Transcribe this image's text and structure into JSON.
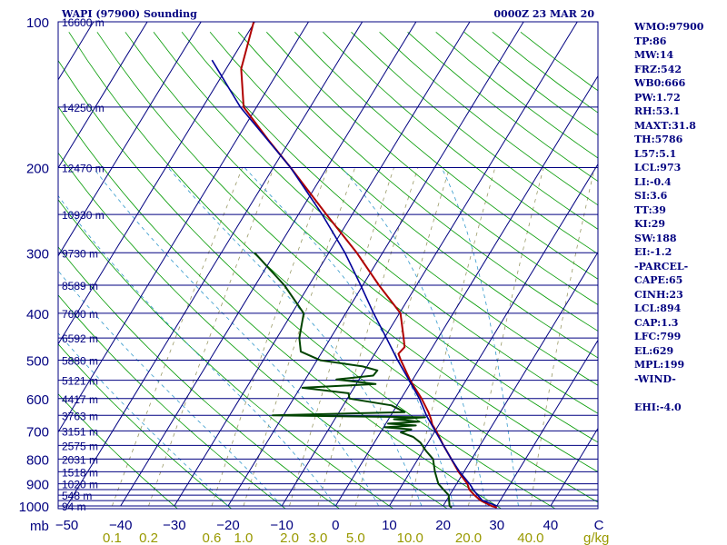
{
  "header": {
    "station": "WAPI (97900) Sounding",
    "time": "0000Z 23 MAR 20"
  },
  "axes": {
    "pressure_unit_label": "mb",
    "mixing_ratio_unit_label": "g/kg"
  },
  "colors": {
    "frame": "#000080",
    "isobar": "#000080",
    "isotherm": "#000080",
    "dry_adiabat": "#009900",
    "moist_adiabat": "#3399cc",
    "mixing_ratio": "#999966",
    "temperature": "#b00000",
    "dewpoint": "#004400",
    "parcel": "#000099"
  },
  "indices": [
    "WMO:97900",
    "TP:86",
    "MW:14",
    "FRZ:542",
    "WB0:666",
    "PW:1.72",
    "RH:53.1",
    "MAXT:31.8",
    "TH:5786",
    "L57:5.1",
    "LCL:973",
    "LI:-0.4",
    "SI:3.6",
    "TT:39",
    "KI:29",
    "SW:188",
    "EI:-1.2",
    "-PARCEL-",
    "CAPE:65",
    "CINH:23",
    "LCL:894",
    "CAP:1.3",
    "LFC:799",
    "EL:629",
    "MPL:199",
    "-WIND-",
    "",
    "EHI:-4.0"
  ],
  "chart_data": {
    "type": "skew-t",
    "pressure_axis": {
      "unit": "mb",
      "ticks": [
        100,
        200,
        300,
        400,
        500,
        600,
        700,
        800,
        900,
        1000
      ],
      "labels": [
        "100",
        "200",
        "300",
        "400",
        "500",
        "600",
        "700",
        "800",
        "900",
        "1000"
      ],
      "scale": "log",
      "range": [
        1000,
        100
      ]
    },
    "temperature_axis": {
      "unit": "C",
      "ticks": [
        -50,
        -40,
        -30,
        -20,
        -10,
        0,
        10,
        20,
        30,
        40
      ],
      "labels": [
        "−50",
        "−40",
        "−30",
        "−20",
        "−10",
        "0",
        "10",
        "20",
        "30",
        "40"
      ],
      "last_label": "C",
      "range": [
        -50,
        50
      ]
    },
    "mixing_ratio_axis": {
      "unit": "g/kg",
      "values": [
        0.1,
        0.2,
        0.6,
        1.0,
        2.0,
        3.0,
        5.0,
        10.0,
        20.0,
        40.0
      ],
      "labels": [
        "0.1",
        "0.2",
        "0.6",
        "1.0",
        "2.0",
        "3.0",
        "5.0",
        "10.0",
        "20.0",
        "40.0"
      ]
    },
    "height_labels": [
      {
        "p": 100,
        "text": "16600 m"
      },
      {
        "p": 150,
        "text": "14250 m"
      },
      {
        "p": 200,
        "text": "12470 m"
      },
      {
        "p": 250,
        "text": "10930 m"
      },
      {
        "p": 300,
        "text": "9730 m"
      },
      {
        "p": 350,
        "text": "8589 m"
      },
      {
        "p": 400,
        "text": "7600 m"
      },
      {
        "p": 450,
        "text": "6592 m"
      },
      {
        "p": 500,
        "text": "5880 m"
      },
      {
        "p": 550,
        "text": "5121 m"
      },
      {
        "p": 600,
        "text": "4417 m"
      },
      {
        "p": 650,
        "text": "3763 m"
      },
      {
        "p": 700,
        "text": "3151 m"
      },
      {
        "p": 750,
        "text": "2575 m"
      },
      {
        "p": 800,
        "text": "2031 m"
      },
      {
        "p": 850,
        "text": "1518 m"
      },
      {
        "p": 900,
        "text": "1020 m"
      },
      {
        "p": 950,
        "text": "548 m"
      },
      {
        "p": 1000,
        "text": "94 m"
      }
    ],
    "isobars": [
      100,
      150,
      200,
      250,
      300,
      350,
      400,
      450,
      500,
      550,
      600,
      650,
      700,
      750,
      800,
      850,
      900,
      925,
      950,
      975,
      1000
    ],
    "temperature_profile": [
      {
        "p": 1008,
        "t": 30.2
      },
      {
        "p": 1000,
        "t": 29.0
      },
      {
        "p": 975,
        "t": 26.4
      },
      {
        "p": 950,
        "t": 24.6
      },
      {
        "p": 925,
        "t": 23.0
      },
      {
        "p": 900,
        "t": 22.0
      },
      {
        "p": 850,
        "t": 19.0
      },
      {
        "p": 800,
        "t": 16.2
      },
      {
        "p": 750,
        "t": 13.2
      },
      {
        "p": 700,
        "t": 10.2
      },
      {
        "p": 680,
        "t": 8.8
      },
      {
        "p": 660,
        "t": 7.8
      },
      {
        "p": 640,
        "t": 6.6
      },
      {
        "p": 600,
        "t": 3.8
      },
      {
        "p": 550,
        "t": -0.4
      },
      {
        "p": 500,
        "t": -4.4
      },
      {
        "p": 485,
        "t": -5.6
      },
      {
        "p": 470,
        "t": -5.2
      },
      {
        "p": 450,
        "t": -6.4
      },
      {
        "p": 400,
        "t": -9.8
      },
      {
        "p": 350,
        "t": -17.0
      },
      {
        "p": 300,
        "t": -24.8
      },
      {
        "p": 250,
        "t": -34.8
      },
      {
        "p": 200,
        "t": -46.8
      },
      {
        "p": 175,
        "t": -54.2
      },
      {
        "p": 150,
        "t": -62.4
      },
      {
        "p": 125,
        "t": -67.2
      },
      {
        "p": 100,
        "t": -70.2
      }
    ],
    "dewpoint_profile": [
      {
        "p": 1008,
        "td": 21.8
      },
      {
        "p": 1000,
        "td": 21.2
      },
      {
        "p": 950,
        "td": 19.8
      },
      {
        "p": 925,
        "td": 18.2
      },
      {
        "p": 900,
        "td": 16.6
      },
      {
        "p": 850,
        "td": 14.6
      },
      {
        "p": 800,
        "td": 12.8
      },
      {
        "p": 770,
        "td": 10.6
      },
      {
        "p": 740,
        "td": 8.6
      },
      {
        "p": 720,
        "td": 6.6
      },
      {
        "p": 705,
        "td": 3.8
      },
      {
        "p": 695,
        "td": 5.4
      },
      {
        "p": 688,
        "td": 0.2
      },
      {
        "p": 682,
        "td": 5.8
      },
      {
        "p": 676,
        "td": 0.4
      },
      {
        "p": 670,
        "td": 6.0
      },
      {
        "p": 662,
        "td": 1.0
      },
      {
        "p": 656,
        "td": 6.6
      },
      {
        "p": 650,
        "td": -22.0
      },
      {
        "p": 640,
        "td": 2.2
      },
      {
        "p": 620,
        "td": -1.0
      },
      {
        "p": 600,
        "td": -9.6
      },
      {
        "p": 585,
        "td": -10.4
      },
      {
        "p": 570,
        "td": -19.6
      },
      {
        "p": 560,
        "td": -6.4
      },
      {
        "p": 548,
        "td": -14.2
      },
      {
        "p": 538,
        "td": -7.8
      },
      {
        "p": 525,
        "td": -7.6
      },
      {
        "p": 515,
        "td": -10.8
      },
      {
        "p": 500,
        "td": -19.4
      },
      {
        "p": 480,
        "td": -24.0
      },
      {
        "p": 450,
        "td": -25.8
      },
      {
        "p": 400,
        "td": -27.8
      },
      {
        "p": 350,
        "td": -34.6
      },
      {
        "p": 300,
        "td": -43.8
      }
    ],
    "parcel_profile": [
      {
        "p": 1000,
        "t": 30.0
      },
      {
        "p": 973,
        "t": 26.6
      },
      {
        "p": 930,
        "t": 24.0
      },
      {
        "p": 900,
        "t": 22.4
      },
      {
        "p": 850,
        "t": 19.2
      },
      {
        "p": 800,
        "t": 16.2
      },
      {
        "p": 750,
        "t": 13.2
      },
      {
        "p": 700,
        "t": 10.0
      },
      {
        "p": 650,
        "t": 6.6
      },
      {
        "p": 600,
        "t": 3.4
      },
      {
        "p": 550,
        "t": -0.6
      },
      {
        "p": 500,
        "t": -5.0
      },
      {
        "p": 450,
        "t": -9.6
      },
      {
        "p": 400,
        "t": -14.8
      },
      {
        "p": 350,
        "t": -20.4
      },
      {
        "p": 300,
        "t": -27.0
      },
      {
        "p": 250,
        "t": -35.6
      },
      {
        "p": 200,
        "t": -46.8
      },
      {
        "p": 150,
        "t": -63.0
      },
      {
        "p": 120,
        "t": -73.6
      }
    ]
  }
}
